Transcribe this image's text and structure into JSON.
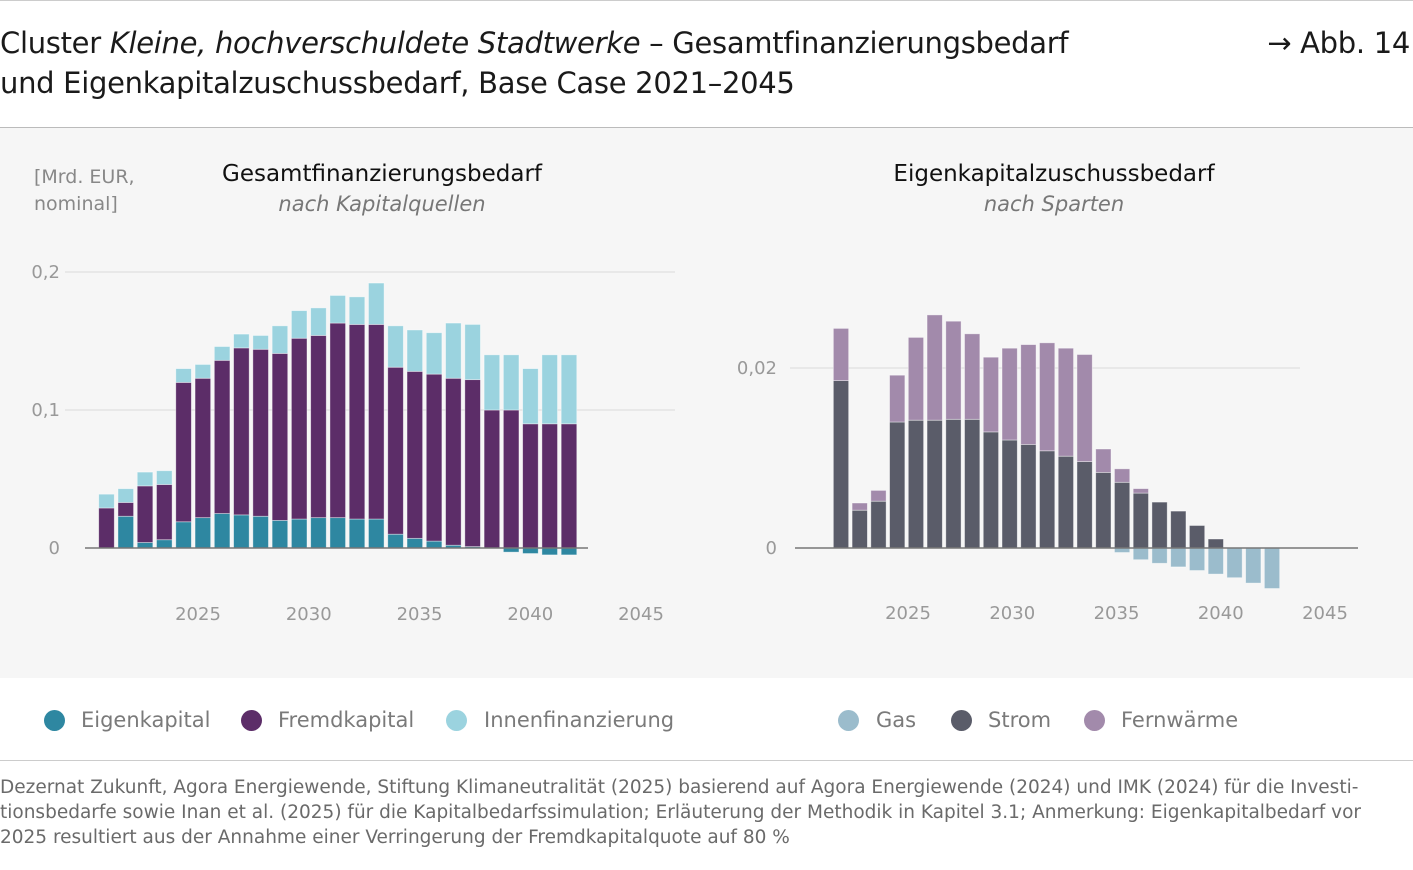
{
  "header": {
    "title_prefix": "Cluster ",
    "title_italic": "Kleine, hochverschuldete Stadtwerke",
    "title_suffix": " – Gesamtfinanzierungsbedarf",
    "title_line2": "und Eigenkapitalzuschussbedarf, Base Case 2021–2045",
    "figure_ref": "→ Abb. 14"
  },
  "unit_label": [
    "[Mrd. EUR,",
    "nominal]"
  ],
  "colors": {
    "eigenkapital": "#2e87a1",
    "fremdkapital": "#5c2d68",
    "innenfinanzierung": "#9bd3df",
    "gas": "#9bbccc",
    "strom": "#5a5c69",
    "fernwaerme": "#a28aab",
    "panel": "#f6f6f6"
  },
  "chart_data": [
    {
      "type": "bar",
      "stacked": true,
      "title": "Gesamtfinanzierungsbedarf",
      "subtitle": "nach Kapitalquellen",
      "ylabel": "[Mrd. EUR, nominal]",
      "ylim": [
        -0.01,
        0.2
      ],
      "yticks": [
        "0",
        "0,1",
        "0,2"
      ],
      "ytick_values": [
        0,
        0.1,
        0.2
      ],
      "xticks": [
        "2025",
        "2030",
        "2035",
        "2040",
        "2045"
      ],
      "grid": true,
      "categories": [
        2021,
        2022,
        2023,
        2024,
        2025,
        2026,
        2027,
        2028,
        2029,
        2030,
        2031,
        2032,
        2033,
        2034,
        2035,
        2036,
        2037,
        2038,
        2039,
        2040,
        2041,
        2042,
        2043,
        2044,
        2045
      ],
      "series": [
        {
          "name": "Eigenkapital",
          "values": [
            0,
            0.023,
            0.004,
            0.006,
            0.019,
            0.022,
            0.025,
            0.024,
            0.023,
            0.02,
            0.021,
            0.022,
            0.022,
            0.021,
            0.021,
            0.01,
            0.007,
            0.005,
            0.002,
            0.001,
            0,
            -0.003,
            -0.004,
            -0.005,
            -0.005
          ]
        },
        {
          "name": "Fremdkapital",
          "values": [
            0.029,
            0.01,
            0.041,
            0.04,
            0.101,
            0.101,
            0.111,
            0.121,
            0.121,
            0.121,
            0.131,
            0.132,
            0.141,
            0.141,
            0.141,
            0.121,
            0.121,
            0.121,
            0.121,
            0.121,
            0.1,
            0.1,
            0.09,
            0.09,
            0.09
          ]
        },
        {
          "name": "Innenfinanzierung",
          "values": [
            0.01,
            0.01,
            0.01,
            0.01,
            0.01,
            0.01,
            0.01,
            0.01,
            0.01,
            0.02,
            0.02,
            0.02,
            0.02,
            0.02,
            0.03,
            0.03,
            0.03,
            0.03,
            0.04,
            0.04,
            0.04,
            0.04,
            0.04,
            0.05,
            0.05
          ]
        }
      ],
      "legend": "bottom"
    },
    {
      "type": "bar",
      "stacked": true,
      "title": "Eigenkapitalzuschussbedarf",
      "subtitle": "nach Sparten",
      "ylim": [
        -0.005,
        0.026
      ],
      "yticks": [
        "0",
        "0,02"
      ],
      "ytick_values": [
        0,
        0.02
      ],
      "xticks": [
        "2025",
        "2030",
        "2035",
        "2040",
        "2045"
      ],
      "grid": true,
      "categories": [
        2022,
        2023,
        2024,
        2025,
        2026,
        2027,
        2028,
        2029,
        2030,
        2031,
        2032,
        2033,
        2034,
        2035,
        2036,
        2037,
        2038,
        2039,
        2040,
        2041,
        2042,
        2043,
        2044,
        2045
      ],
      "series": [
        {
          "name": "Gas",
          "values": [
            0,
            0,
            0,
            0,
            0,
            0,
            0,
            0,
            0,
            0,
            0,
            0,
            0,
            0,
            0,
            -0.0005,
            -0.0013,
            -0.0017,
            -0.0021,
            -0.0025,
            -0.0029,
            -0.0033,
            -0.0039,
            -0.0045
          ]
        },
        {
          "name": "Strom",
          "values": [
            0.0186,
            0.0042,
            0.0052,
            0.014,
            0.0142,
            0.0142,
            0.0143,
            0.0143,
            0.0129,
            0.012,
            0.0115,
            0.0108,
            0.0102,
            0.0096,
            0.0084,
            0.0073,
            0.0061,
            0.0051,
            0.0041,
            0.0025,
            0.001,
            0,
            0,
            0
          ]
        },
        {
          "name": "Fernwärme",
          "values": [
            0.0058,
            0.0008,
            0.0012,
            0.0052,
            0.0092,
            0.0117,
            0.0109,
            0.0095,
            0.0083,
            0.0102,
            0.0111,
            0.012,
            0.012,
            0.0119,
            0.0026,
            0.0015,
            0.0005,
            0,
            0,
            0,
            0,
            0,
            0,
            0
          ]
        }
      ],
      "legend": "bottom"
    }
  ],
  "legend_left": [
    "Eigenkapital",
    "Fremdkapital",
    "Innenfinanzierung"
  ],
  "legend_right": [
    "Gas",
    "Strom",
    "Fernwärme"
  ],
  "footer": [
    "Dezernat Zukunft, Agora Energiewende, Stiftung Klimaneutralität (2025) basierend auf Agora Energiewende (2024) und IMK (2024) für die Investi-",
    "tionsbedarfe sowie Inan et al. (2025) für die Kapitalbedarfssimulation; Erläuterung der Methodik in Kapitel 3.1; Anmerkung: Eigenkapitalbedarf vor",
    "2025 resultiert aus der Annahme einer Verringerung der Fremdkapitalquote auf 80 %"
  ]
}
